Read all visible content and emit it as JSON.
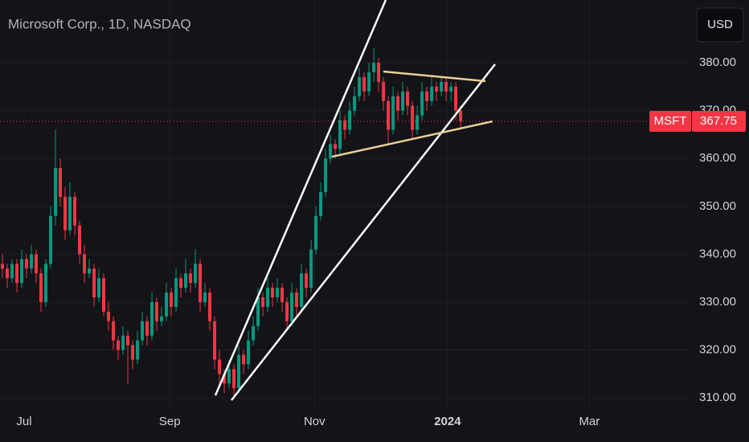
{
  "chart_data": {
    "type": "candlestick",
    "title": "Microsoft Corp., 1D, NASDAQ",
    "currency": "USD",
    "up_color": "#089981",
    "down_color": "#f23645",
    "grid": true,
    "ylim": [
      307.5,
      393.1
    ],
    "yticks": [
      {
        "value": 310,
        "label": "310.00"
      },
      {
        "value": 320,
        "label": "320.00"
      },
      {
        "value": 330,
        "label": "330.00"
      },
      {
        "value": 340,
        "label": "340.00"
      },
      {
        "value": 350,
        "label": "350.00"
      },
      {
        "value": 360,
        "label": "360.00"
      },
      {
        "value": 370,
        "label": "370.00"
      },
      {
        "value": 380,
        "label": "380.00"
      }
    ],
    "xlim": [
      -0.5,
      142.8
    ],
    "xticks": [
      {
        "value": 4.5,
        "label": "Jul"
      },
      {
        "value": 34.7,
        "label": "Sep"
      },
      {
        "value": 64.7,
        "label": "Nov"
      },
      {
        "value": 92.3,
        "label": "2024"
      },
      {
        "value": 121.7,
        "label": "Mar"
      }
    ],
    "last_price": {
      "name": "MSFT",
      "value": 367.75
    },
    "candles": [
      [
        338,
        340,
        335,
        337
      ],
      [
        337,
        338,
        333,
        335
      ],
      [
        335,
        339,
        334,
        338
      ],
      [
        338,
        339,
        332,
        334
      ],
      [
        334,
        341,
        333,
        339
      ],
      [
        339,
        340,
        335,
        337
      ],
      [
        337,
        342,
        336,
        340
      ],
      [
        340,
        341,
        334,
        336
      ],
      [
        336,
        337,
        328,
        330
      ],
      [
        330,
        339,
        329,
        338
      ],
      [
        338,
        350,
        337,
        348
      ],
      [
        348,
        366,
        346,
        358
      ],
      [
        358,
        360,
        350,
        352
      ],
      [
        352,
        354,
        343,
        345
      ],
      [
        345,
        355,
        344,
        352
      ],
      [
        352,
        353,
        344,
        346
      ],
      [
        346,
        347,
        338,
        340
      ],
      [
        340,
        342,
        334,
        336
      ],
      [
        336,
        339,
        335,
        337
      ],
      [
        337,
        338,
        329,
        331
      ],
      [
        331,
        337,
        330,
        335
      ],
      [
        335,
        336,
        327,
        328
      ],
      [
        328,
        330,
        324,
        326
      ],
      [
        326,
        327,
        320,
        322
      ],
      [
        322,
        323,
        318,
        320
      ],
      [
        320,
        325,
        319,
        323
      ],
      [
        323,
        324,
        313,
        321
      ],
      [
        321,
        322,
        316,
        318
      ],
      [
        318,
        324,
        317,
        322
      ],
      [
        322,
        328,
        321,
        326
      ],
      [
        326,
        327,
        321,
        323
      ],
      [
        323,
        332,
        322,
        330
      ],
      [
        330,
        331,
        324,
        326
      ],
      [
        326,
        329,
        325,
        327
      ],
      [
        327,
        334,
        326,
        332
      ],
      [
        332,
        333,
        327,
        329
      ],
      [
        329,
        337,
        328,
        335
      ],
      [
        335,
        336,
        331,
        333
      ],
      [
        333,
        339,
        332,
        336
      ],
      [
        336,
        337,
        332,
        334
      ],
      [
        334,
        341,
        333,
        338
      ],
      [
        338,
        339,
        328,
        330
      ],
      [
        330,
        334,
        329,
        332
      ],
      [
        332,
        333,
        324,
        326
      ],
      [
        326,
        327,
        316,
        318
      ],
      [
        318,
        320,
        313,
        315
      ],
      [
        315,
        316,
        311,
        313
      ],
      [
        313,
        318,
        312,
        316
      ],
      [
        316,
        317,
        310,
        312
      ],
      [
        312,
        321,
        311,
        319
      ],
      [
        319,
        320,
        315,
        317
      ],
      [
        317,
        324,
        316,
        322
      ],
      [
        322,
        327,
        321,
        325
      ],
      [
        325,
        333,
        324,
        331
      ],
      [
        331,
        332,
        327,
        329
      ],
      [
        329,
        335,
        328,
        333
      ],
      [
        333,
        334,
        329,
        331
      ],
      [
        331,
        335,
        330,
        333
      ],
      [
        333,
        334,
        328,
        330
      ],
      [
        330,
        331,
        324,
        326
      ],
      [
        326,
        334,
        325,
        332
      ],
      [
        332,
        333,
        327,
        329
      ],
      [
        329,
        338,
        328,
        336
      ],
      [
        336,
        337,
        331,
        333
      ],
      [
        333,
        343,
        332,
        341
      ],
      [
        341,
        350,
        340,
        348
      ],
      [
        348,
        355,
        347,
        353
      ],
      [
        353,
        362,
        352,
        360
      ],
      [
        360,
        365,
        359,
        363
      ],
      [
        363,
        364,
        360,
        362
      ],
      [
        362,
        370,
        361,
        368
      ],
      [
        368,
        369,
        364,
        366
      ],
      [
        366,
        372,
        365,
        370
      ],
      [
        370,
        375,
        369,
        373
      ],
      [
        373,
        379,
        372,
        377
      ],
      [
        377,
        378,
        372,
        374
      ],
      [
        374,
        380,
        373,
        378
      ],
      [
        378,
        383,
        376,
        380
      ],
      [
        380,
        381,
        374,
        376
      ],
      [
        376,
        377,
        370,
        372
      ],
      [
        372,
        373,
        363,
        366
      ],
      [
        366,
        375,
        365,
        373
      ],
      [
        373,
        374,
        368,
        370
      ],
      [
        370,
        376,
        369,
        374
      ],
      [
        374,
        375,
        369,
        371
      ],
      [
        371,
        372,
        364,
        366
      ],
      [
        366,
        371,
        365,
        369
      ],
      [
        369,
        376,
        368,
        374
      ],
      [
        374,
        375,
        370,
        372
      ],
      [
        372,
        377,
        371,
        375
      ],
      [
        375,
        376,
        372,
        374
      ],
      [
        374,
        377,
        373,
        376
      ],
      [
        376,
        377,
        372,
        374
      ],
      [
        374,
        376,
        372,
        375
      ],
      [
        375,
        376,
        368,
        370
      ],
      [
        370,
        371,
        366,
        367.75
      ]
    ]
  }
}
